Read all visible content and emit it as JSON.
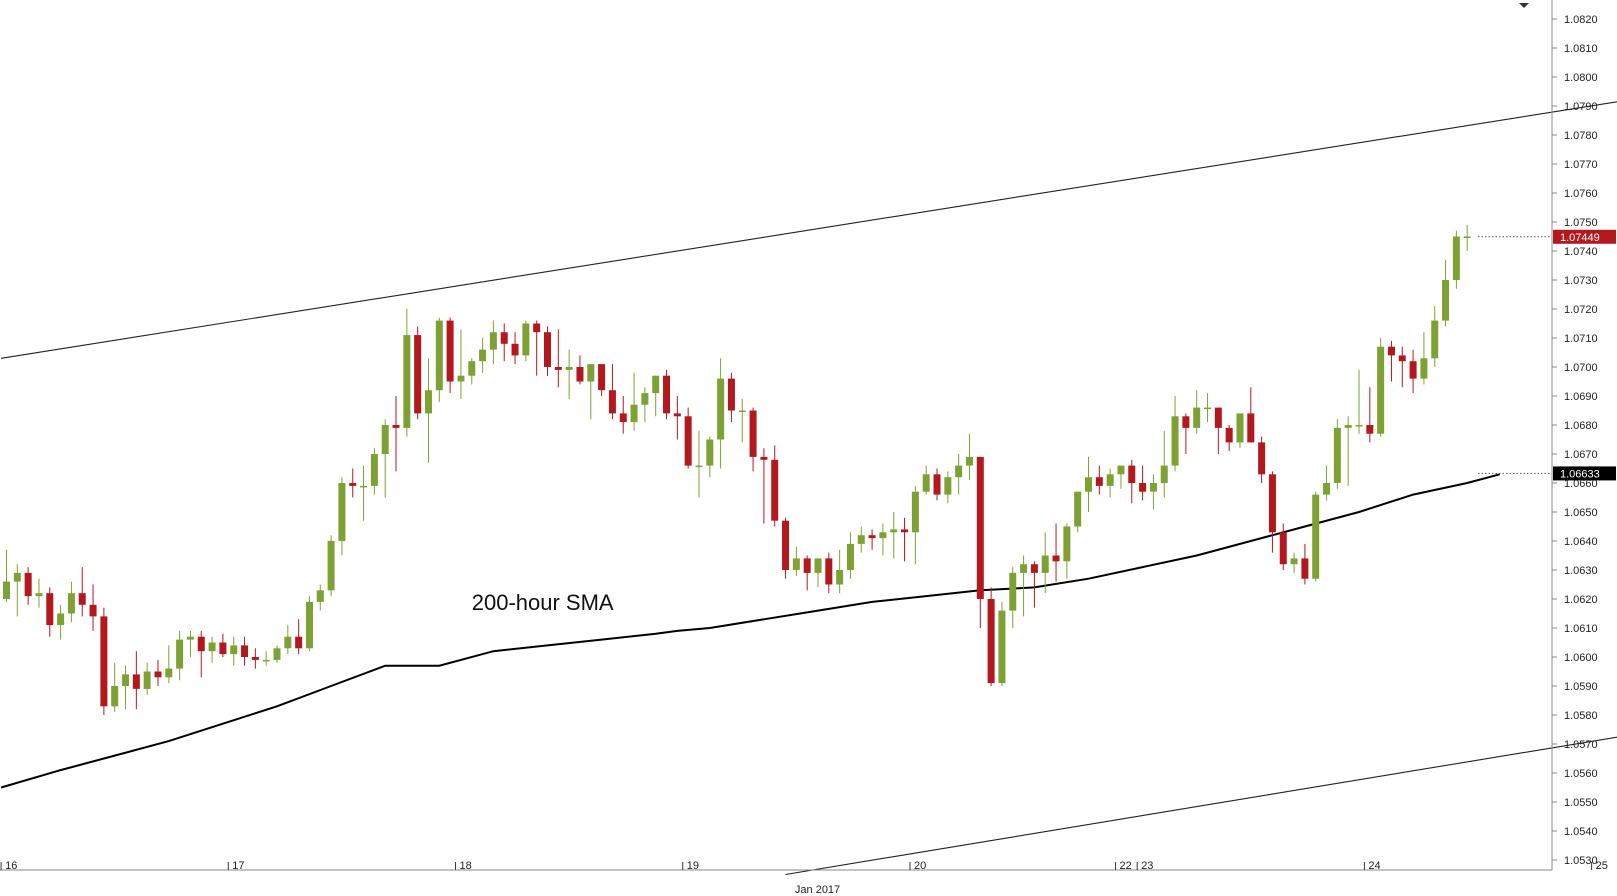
{
  "chart_data": {
    "type": "candlestick",
    "title": "",
    "xlabel": "",
    "ylabel": "",
    "x_label": "Jan 2017",
    "ylim": [
      1.0525,
      1.0828
    ],
    "yticks": [
      "1.0530",
      "1.0540",
      "1.0550",
      "1.0560",
      "1.0570",
      "1.0580",
      "1.0590",
      "1.0600",
      "1.0610",
      "1.0620",
      "1.0630",
      "1.0640",
      "1.0650",
      "1.0660",
      "1.0670",
      "1.0680",
      "1.0690",
      "1.0700",
      "1.0710",
      "1.0720",
      "1.0730",
      "1.0740",
      "1.0750",
      "1.0760",
      "1.0770",
      "1.0780",
      "1.0790",
      "1.0800",
      "1.0810",
      "1.0820"
    ],
    "day_labels": [
      {
        "label": "16",
        "bar": -0.5
      },
      {
        "label": "17",
        "bar": 20.5
      },
      {
        "label": "18",
        "bar": 41.5
      },
      {
        "label": "19",
        "bar": 62.5
      },
      {
        "label": "20",
        "bar": 83.5
      },
      {
        "label": "22",
        "bar": 102.5
      },
      {
        "label": "23",
        "bar": 104.5
      },
      {
        "label": "24",
        "bar": 125.5
      },
      {
        "label": "25",
        "bar": 146.5
      }
    ],
    "colors": {
      "up": "#7da233",
      "down": "#b3181e",
      "sma": "#000000",
      "channel": "#222222",
      "grid_axis": "#888888"
    },
    "candles": [
      [
        1.062,
        1.0637,
        1.0619,
        1.0626
      ],
      [
        1.0626,
        1.0632,
        1.0614,
        1.0629
      ],
      [
        1.0629,
        1.0631,
        1.0618,
        1.0621
      ],
      [
        1.0621,
        1.0627,
        1.0617,
        1.0622
      ],
      [
        1.0622,
        1.0624,
        1.0607,
        1.0611
      ],
      [
        1.0611,
        1.0618,
        1.0606,
        1.0615
      ],
      [
        1.0615,
        1.0626,
        1.0612,
        1.0622
      ],
      [
        1.0622,
        1.0631,
        1.0614,
        1.0618
      ],
      [
        1.0618,
        1.0625,
        1.0609,
        1.0614
      ],
      [
        1.0614,
        1.0617,
        1.058,
        1.0583
      ],
      [
        1.0583,
        1.0598,
        1.0581,
        1.059
      ],
      [
        1.059,
        1.0597,
        1.0582,
        1.0594
      ],
      [
        1.0594,
        1.0602,
        1.0582,
        1.0589
      ],
      [
        1.0589,
        1.0598,
        1.0587,
        1.0595
      ],
      [
        1.0595,
        1.0599,
        1.059,
        1.0593
      ],
      [
        1.0593,
        1.0604,
        1.0591,
        1.0596
      ],
      [
        1.0596,
        1.0609,
        1.0592,
        1.0606
      ],
      [
        1.0606,
        1.0609,
        1.06,
        1.0607
      ],
      [
        1.0607,
        1.0609,
        1.0593,
        1.0602
      ],
      [
        1.0602,
        1.0607,
        1.0598,
        1.0605
      ],
      [
        1.0605,
        1.0608,
        1.06,
        1.0601
      ],
      [
        1.0601,
        1.0607,
        1.0597,
        1.0604
      ],
      [
        1.0604,
        1.0607,
        1.0597,
        1.06
      ],
      [
        1.06,
        1.0603,
        1.0596,
        1.0599
      ],
      [
        1.0599,
        1.0602,
        1.0597,
        1.0599
      ],
      [
        1.0599,
        1.0604,
        1.0598,
        1.0603
      ],
      [
        1.0603,
        1.0611,
        1.0601,
        1.0607
      ],
      [
        1.0607,
        1.0613,
        1.0601,
        1.0603
      ],
      [
        1.0603,
        1.0621,
        1.0602,
        1.0619
      ],
      [
        1.0619,
        1.0625,
        1.0616,
        1.0623
      ],
      [
        1.0623,
        1.0642,
        1.0621,
        1.064
      ],
      [
        1.064,
        1.0662,
        1.0635,
        1.066
      ],
      [
        1.066,
        1.0665,
        1.0655,
        1.0659
      ],
      [
        1.0659,
        1.0666,
        1.0647,
        1.0659
      ],
      [
        1.0659,
        1.0672,
        1.0656,
        1.067
      ],
      [
        1.067,
        1.0682,
        1.0655,
        1.068
      ],
      [
        1.068,
        1.069,
        1.0664,
        1.0679
      ],
      [
        1.0679,
        1.072,
        1.0676,
        1.0711
      ],
      [
        1.0711,
        1.0714,
        1.0682,
        1.0684
      ],
      [
        1.0684,
        1.0703,
        1.0667,
        1.0692
      ],
      [
        1.0692,
        1.0717,
        1.0688,
        1.0716
      ],
      [
        1.0716,
        1.0717,
        1.0691,
        1.0695
      ],
      [
        1.0695,
        1.0713,
        1.0689,
        1.0697
      ],
      [
        1.0697,
        1.0703,
        1.0694,
        1.0702
      ],
      [
        1.0702,
        1.071,
        1.0698,
        1.0706
      ],
      [
        1.0706,
        1.0716,
        1.0701,
        1.0712
      ],
      [
        1.0712,
        1.0715,
        1.0702,
        1.0708
      ],
      [
        1.0708,
        1.0712,
        1.0701,
        1.0704
      ],
      [
        1.0704,
        1.0716,
        1.0702,
        1.0715
      ],
      [
        1.0715,
        1.0716,
        1.0697,
        1.0712
      ],
      [
        1.0712,
        1.0714,
        1.0697,
        1.07
      ],
      [
        1.07,
        1.0713,
        1.0693,
        1.0699
      ],
      [
        1.0699,
        1.0706,
        1.0689,
        1.07
      ],
      [
        1.07,
        1.0704,
        1.0694,
        1.0695
      ],
      [
        1.0695,
        1.0701,
        1.0682,
        1.0701
      ],
      [
        1.0701,
        1.0701,
        1.069,
        1.0692
      ],
      [
        1.0692,
        1.0701,
        1.0682,
        1.0684
      ],
      [
        1.0684,
        1.069,
        1.0677,
        1.0681
      ],
      [
        1.0681,
        1.0698,
        1.0678,
        1.0687
      ],
      [
        1.0687,
        1.0693,
        1.0681,
        1.0691
      ],
      [
        1.0691,
        1.0697,
        1.0683,
        1.0697
      ],
      [
        1.0697,
        1.0699,
        1.0682,
        1.0684
      ],
      [
        1.0684,
        1.069,
        1.0675,
        1.0683
      ],
      [
        1.0683,
        1.0686,
        1.0665,
        1.0666
      ],
      [
        1.0666,
        1.0678,
        1.0655,
        1.0666
      ],
      [
        1.0666,
        1.0676,
        1.0662,
        1.0675
      ],
      [
        1.0675,
        1.0703,
        1.0665,
        1.0696
      ],
      [
        1.0696,
        1.0698,
        1.0681,
        1.0685
      ],
      [
        1.0685,
        1.0689,
        1.0674,
        1.0685
      ],
      [
        1.0685,
        1.0686,
        1.0664,
        1.0669
      ],
      [
        1.0669,
        1.0672,
        1.0646,
        1.0668
      ],
      [
        1.0668,
        1.0673,
        1.0645,
        1.0647
      ],
      [
        1.0647,
        1.0648,
        1.0627,
        1.063
      ],
      [
        1.063,
        1.0638,
        1.0628,
        1.0634
      ],
      [
        1.0634,
        1.0635,
        1.0623,
        1.0629
      ],
      [
        1.0629,
        1.0634,
        1.0624,
        1.0634
      ],
      [
        1.0634,
        1.0636,
        1.0622,
        1.0625
      ],
      [
        1.0625,
        1.0637,
        1.0622,
        1.063
      ],
      [
        1.063,
        1.0643,
        1.0627,
        1.0639
      ],
      [
        1.0639,
        1.0645,
        1.0636,
        1.0642
      ],
      [
        1.0642,
        1.0644,
        1.0637,
        1.0641
      ],
      [
        1.0641,
        1.0646,
        1.0635,
        1.0643
      ],
      [
        1.0643,
        1.065,
        1.0634,
        1.0644
      ],
      [
        1.0644,
        1.0648,
        1.0633,
        1.0643
      ],
      [
        1.0643,
        1.0659,
        1.0632,
        1.0657
      ],
      [
        1.0657,
        1.0666,
        1.0656,
        1.0663
      ],
      [
        1.0663,
        1.0665,
        1.0654,
        1.0656
      ],
      [
        1.0656,
        1.0664,
        1.0653,
        1.0662
      ],
      [
        1.0662,
        1.067,
        1.0656,
        1.0666
      ],
      [
        1.0666,
        1.0677,
        1.0661,
        1.0669
      ],
      [
        1.0669,
        1.0669,
        1.061,
        1.062
      ],
      [
        1.062,
        1.0624,
        1.059,
        1.0591
      ],
      [
        1.0591,
        1.0619,
        1.059,
        1.0616
      ],
      [
        1.0616,
        1.0631,
        1.061,
        1.0629
      ],
      [
        1.0629,
        1.0635,
        1.0614,
        1.0632
      ],
      [
        1.0632,
        1.0633,
        1.0617,
        1.0629
      ],
      [
        1.0629,
        1.0643,
        1.0622,
        1.0635
      ],
      [
        1.0635,
        1.0646,
        1.0626,
        1.0633
      ],
      [
        1.0633,
        1.0646,
        1.0627,
        1.0645
      ],
      [
        1.0645,
        1.0657,
        1.0643,
        1.0657
      ],
      [
        1.0657,
        1.0669,
        1.065,
        1.0662
      ],
      [
        1.0662,
        1.0666,
        1.0656,
        1.0659
      ],
      [
        1.0659,
        1.0665,
        1.0655,
        1.0663
      ],
      [
        1.0663,
        1.0666,
        1.0658,
        1.0666
      ],
      [
        1.0666,
        1.0668,
        1.0653,
        1.066
      ],
      [
        1.066,
        1.0666,
        1.0654,
        1.0657
      ],
      [
        1.0657,
        1.0663,
        1.0651,
        1.066
      ],
      [
        1.066,
        1.0678,
        1.0655,
        1.0666
      ],
      [
        1.0666,
        1.069,
        1.0664,
        1.0683
      ],
      [
        1.0683,
        1.0684,
        1.067,
        1.0679
      ],
      [
        1.0679,
        1.0692,
        1.0677,
        1.0686
      ],
      [
        1.0686,
        1.0691,
        1.0681,
        1.0686
      ],
      [
        1.0686,
        1.0686,
        1.067,
        1.0679
      ],
      [
        1.0679,
        1.068,
        1.0671,
        1.0674
      ],
      [
        1.0674,
        1.0684,
        1.0672,
        1.0684
      ],
      [
        1.0684,
        1.0693,
        1.0675,
        1.0674
      ],
      [
        1.0674,
        1.0676,
        1.066,
        1.0663
      ],
      [
        1.0663,
        1.0664,
        1.0636,
        1.0643
      ],
      [
        1.0643,
        1.0646,
        1.063,
        1.0632
      ],
      [
        1.0632,
        1.0636,
        1.0629,
        1.0634
      ],
      [
        1.0634,
        1.0639,
        1.0625,
        1.0627
      ],
      [
        1.0627,
        1.0657,
        1.0626,
        1.0656
      ],
      [
        1.0656,
        1.0666,
        1.0654,
        1.066
      ],
      [
        1.066,
        1.0682,
        1.0658,
        1.0679
      ],
      [
        1.0679,
        1.0683,
        1.0659,
        1.068
      ],
      [
        1.068,
        1.0699,
        1.0677,
        1.068
      ],
      [
        1.068,
        1.0693,
        1.0674,
        1.0677
      ],
      [
        1.0677,
        1.071,
        1.0676,
        1.0707
      ],
      [
        1.0707,
        1.0709,
        1.0695,
        1.0704
      ],
      [
        1.0704,
        1.0707,
        1.0693,
        1.0702
      ],
      [
        1.0702,
        1.0706,
        1.0691,
        1.0696
      ],
      [
        1.0696,
        1.0712,
        1.0694,
        1.0703
      ],
      [
        1.0703,
        1.0721,
        1.07,
        1.0716
      ],
      [
        1.0716,
        1.0737,
        1.0714,
        1.073
      ],
      [
        1.073,
        1.0747,
        1.0727,
        1.0745
      ],
      [
        1.0745,
        1.0749,
        1.074,
        1.0745
      ]
    ],
    "sma_200": [
      [
        -0.5,
        1.0555
      ],
      [
        5,
        1.0561
      ],
      [
        10,
        1.0566
      ],
      [
        15,
        1.0571
      ],
      [
        20,
        1.0577
      ],
      [
        25,
        1.0583
      ],
      [
        30,
        1.059
      ],
      [
        35,
        1.0597
      ],
      [
        40,
        1.0597
      ],
      [
        45,
        1.0602
      ],
      [
        50,
        1.0604
      ],
      [
        55,
        1.0606
      ],
      [
        60,
        1.0608
      ],
      [
        62,
        1.0609
      ],
      [
        65,
        1.061
      ],
      [
        70,
        1.0613
      ],
      [
        75,
        1.0616
      ],
      [
        80,
        1.0619
      ],
      [
        85,
        1.0621
      ],
      [
        90,
        1.0623
      ],
      [
        95,
        1.0624
      ],
      [
        100,
        1.0627
      ],
      [
        105,
        1.0631
      ],
      [
        110,
        1.0635
      ],
      [
        115,
        1.064
      ],
      [
        120,
        1.0645
      ],
      [
        125,
        1.065
      ],
      [
        130,
        1.0656
      ],
      [
        135,
        1.066
      ],
      [
        138,
        1.0663
      ]
    ],
    "channel_lines": [
      {
        "from": [
          -0.5,
          1.0703
        ],
        "to": [
          151.5,
          1.0793
        ]
      },
      {
        "from": [
          72,
          1.0525
        ],
        "to": [
          151.5,
          1.0574
        ]
      }
    ],
    "price_tags": [
      {
        "label": "1.07449",
        "value": 1.07449,
        "color": "#b3181e",
        "from_bar": 136
      },
      {
        "label": "1.06633",
        "value": 1.06633,
        "color": "#000000",
        "from_bar": 136
      }
    ],
    "annotations": [
      {
        "text": "200-hour SMA",
        "bar": 43,
        "value": 1.0619
      }
    ]
  }
}
